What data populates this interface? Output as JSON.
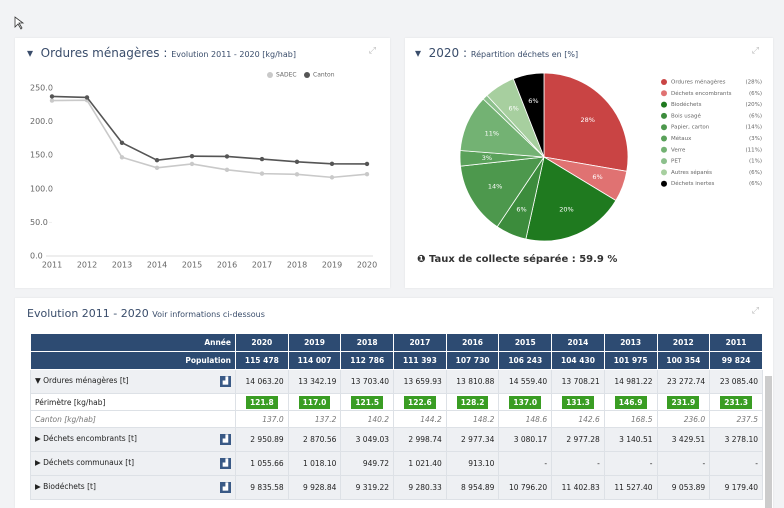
{
  "line_panel": {
    "title": "Ordures ménagères :",
    "subtitle": "Evolution 2011 - 2020 [kg/hab]",
    "chart_data": {
      "type": "line",
      "x": [
        2011,
        2012,
        2013,
        2014,
        2015,
        2016,
        2017,
        2018,
        2019,
        2020
      ],
      "xlim": [
        2011,
        2020
      ],
      "series": [
        {
          "name": "SADEC",
          "color": "#c9c9c9",
          "values": [
            231.3,
            231.9,
            146.9,
            131.3,
            137.0,
            128.2,
            122.6,
            121.5,
            117.0,
            121.8
          ]
        },
        {
          "name": "Canton",
          "color": "#555555",
          "values": [
            237.5,
            236.0,
            168.5,
            142.6,
            148.6,
            148.2,
            144.2,
            140.2,
            137.2,
            137.0
          ]
        }
      ],
      "ylim": [
        0,
        250
      ],
      "yticks": [
        {
          "value": 0,
          "label": "0.0"
        },
        {
          "value": 50,
          "label": "50.0"
        },
        {
          "value": 100,
          "label": "100.0"
        },
        {
          "value": 150,
          "label": "150.0"
        },
        {
          "value": 200,
          "label": "200.0"
        },
        {
          "value": 250,
          "label": "250.0"
        }
      ],
      "grid": false,
      "legend": "top-right"
    }
  },
  "pie_panel": {
    "title": "2020 :",
    "subtitle": "Répartition déchets en [%]",
    "chart_data": {
      "type": "pie",
      "categories": [
        "Ordures ménagères",
        "Déchets encombrants",
        "Biodéchets",
        "Bois usagé",
        "Papier, carton",
        "Métaux",
        "Verre",
        "PET",
        "Autres séparés",
        "Déchets inertes"
      ],
      "values": [
        28,
        6,
        20,
        6,
        14,
        3,
        11,
        1,
        6,
        6
      ],
      "value_labels": [
        "28%",
        "6%",
        "20%",
        "6%",
        "14%",
        "3%",
        "11%",
        null,
        "6%",
        "6%"
      ],
      "legend_labels": [
        "(28%)",
        "(6%)",
        "(20%)",
        "(6%)",
        "(14%)",
        "(3%)",
        "(11%)",
        "(1%)",
        "(6%)",
        "(6%)"
      ],
      "colors": [
        "#c94444",
        "#e07272",
        "#1f7a1f",
        "#3c8c3c",
        "#4d984d",
        "#5aa15a",
        "#73b273",
        "#8cc08c",
        "#a7cf9f",
        "#000000"
      ]
    },
    "footer": "Taux de collecte séparée : 59.9 %"
  },
  "table_panel": {
    "title": "Evolution 2011 - 2020",
    "subtitle": "Voir informations ci-dessous",
    "table": {
      "header_label": "Année",
      "years": [
        "2020",
        "2019",
        "2018",
        "2017",
        "2016",
        "2015",
        "2014",
        "2013",
        "2012",
        "2011"
      ],
      "population_label": "Population",
      "population": [
        "115 478",
        "114 007",
        "112 786",
        "111 393",
        "107 730",
        "106 243",
        "104 430",
        "101 975",
        "100 354",
        "99 824"
      ],
      "rows": [
        {
          "kind": "group-open",
          "label": "Ordures ménagères [t]",
          "values": [
            "14 063.20",
            "13 342.19",
            "13 703.40",
            "13 659.93",
            "13 810.88",
            "14 559.40",
            "13 708.21",
            "14 981.22",
            "23 272.74",
            "23 085.40"
          ]
        },
        {
          "kind": "badge",
          "label": "Périmètre [kg/hab]",
          "values": [
            "121.8",
            "117.0",
            "121.5",
            "122.6",
            "128.2",
            "137.0",
            "131.3",
            "146.9",
            "231.9",
            "231.3"
          ]
        },
        {
          "kind": "italic",
          "label": "Canton [kg/hab]",
          "values": [
            "137.0",
            "137.2",
            "140.2",
            "144.2",
            "148.2",
            "148.6",
            "142.6",
            "168.5",
            "236.0",
            "237.5"
          ]
        },
        {
          "kind": "group",
          "label": "Déchets encombrants [t]",
          "values": [
            "2 950.89",
            "2 870.56",
            "3 049.03",
            "2 998.74",
            "2 977.34",
            "3 080.17",
            "2 977.28",
            "3 140.51",
            "3 429.51",
            "3 278.10"
          ]
        },
        {
          "kind": "group",
          "label": "Déchets communaux [t]",
          "values": [
            "1 055.66",
            "1 018.10",
            "949.72",
            "1 021.40",
            "913.10",
            "-",
            "-",
            "-",
            "-",
            "-"
          ]
        },
        {
          "kind": "group",
          "label": "Biodéchets [t]",
          "values": [
            "9 835.58",
            "9 928.84",
            "9 319.22",
            "9 280.33",
            "8 954.89",
            "10 796.20",
            "11 402.83",
            "11 527.40",
            "9 053.89",
            "9 179.40"
          ]
        }
      ]
    }
  }
}
